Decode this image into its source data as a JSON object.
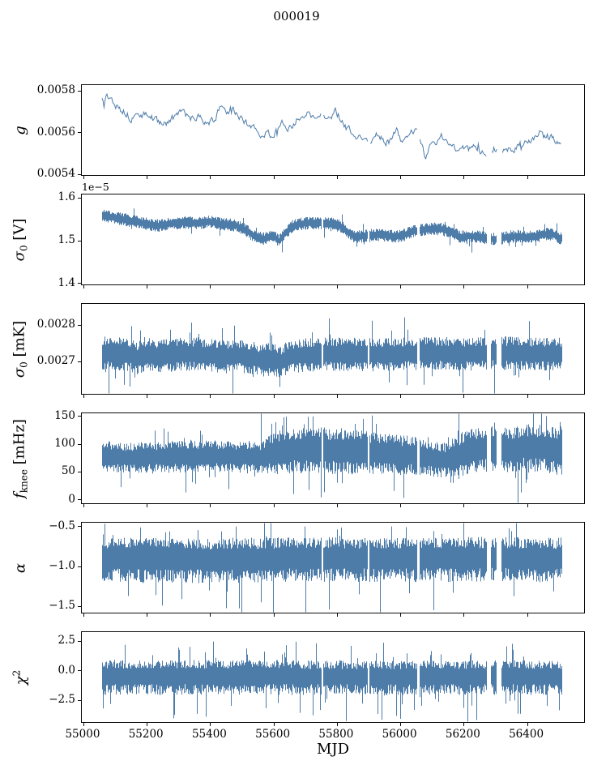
{
  "figure": {
    "title": "000019",
    "xlabel": "MJD",
    "background_color": "#ffffff",
    "line_color": "#4e7ca9",
    "axis_color": "#0a0a0a"
  },
  "chart_data": {
    "type": "line",
    "title": "000019",
    "xlabel": "MJD",
    "x_range": [
      55059,
      56508
    ],
    "xlim": [
      54995,
      56580
    ],
    "xticks": [
      {
        "v": 55000,
        "label": "55000"
      },
      {
        "v": 55200,
        "label": "55200"
      },
      {
        "v": 55400,
        "label": "55400"
      },
      {
        "v": 55600,
        "label": "55600"
      },
      {
        "v": 55800,
        "label": "55800"
      },
      {
        "v": 56000,
        "label": "56000"
      },
      {
        "v": 56200,
        "label": "56200"
      },
      {
        "v": 56400,
        "label": "56400"
      }
    ],
    "gaps": [
      [
        55752,
        55757
      ],
      [
        55897,
        55903
      ],
      [
        56053,
        56062
      ],
      [
        56272,
        56287
      ],
      [
        56305,
        56320
      ]
    ],
    "legend": "none",
    "grid": false,
    "panels": [
      {
        "name": "g",
        "label": {
          "base": "g"
        },
        "style": "line",
        "ylim": [
          0.005393,
          0.005825
        ],
        "yticks": [
          {
            "v": 0.0054,
            "label": "0.0054"
          },
          {
            "v": 0.0056,
            "label": "0.0056"
          },
          {
            "v": 0.0058,
            "label": "0.0058"
          }
        ],
        "offset": "",
        "trend": [
          [
            55060,
            0.00576
          ],
          [
            55075,
            0.005772
          ],
          [
            55090,
            0.005755
          ],
          [
            55110,
            0.005715
          ],
          [
            55130,
            0.005695
          ],
          [
            55150,
            0.005665
          ],
          [
            55175,
            0.005685
          ],
          [
            55200,
            0.005678
          ],
          [
            55222,
            0.005662
          ],
          [
            55240,
            0.005648
          ],
          [
            55256,
            0.005632
          ],
          [
            55270,
            0.005658
          ],
          [
            55290,
            0.005668
          ],
          [
            55308,
            0.005708
          ],
          [
            55325,
            0.005678
          ],
          [
            55345,
            0.005658
          ],
          [
            55365,
            0.005668
          ],
          [
            55385,
            0.005658
          ],
          [
            55405,
            0.005648
          ],
          [
            55420,
            0.005678
          ],
          [
            55435,
            0.005718
          ],
          [
            55450,
            0.005688
          ],
          [
            55465,
            0.005708
          ],
          [
            55480,
            0.005688
          ],
          [
            55500,
            0.005668
          ],
          [
            55520,
            0.005638
          ],
          [
            55540,
            0.005608
          ],
          [
            55555,
            0.005588
          ],
          [
            55570,
            0.005578
          ],
          [
            55585,
            0.005598
          ],
          [
            55600,
            0.005568
          ],
          [
            55615,
            0.005618
          ],
          [
            55630,
            0.005648
          ],
          [
            55645,
            0.005598
          ],
          [
            55660,
            0.005628
          ],
          [
            55675,
            0.005658
          ],
          [
            55690,
            0.005688
          ],
          [
            55705,
            0.005698
          ],
          [
            55720,
            0.005678
          ],
          [
            55735,
            0.005668
          ],
          [
            55750,
            0.005658
          ],
          [
            55765,
            0.005678
          ],
          [
            55780,
            0.005688
          ],
          [
            55795,
            0.005698
          ],
          [
            55810,
            0.005668
          ],
          [
            55825,
            0.005628
          ],
          [
            55840,
            0.005608
          ],
          [
            55855,
            0.005558
          ],
          [
            55870,
            0.005568
          ],
          [
            55885,
            0.005578
          ],
          [
            55900,
            0.005548
          ],
          [
            55915,
            0.005568
          ],
          [
            55930,
            0.005598
          ],
          [
            55945,
            0.005558
          ],
          [
            55960,
            0.005548
          ],
          [
            55975,
            0.005568
          ],
          [
            55990,
            0.005608
          ],
          [
            56005,
            0.005558
          ],
          [
            56020,
            0.005568
          ],
          [
            56035,
            0.005608
          ],
          [
            56050,
            0.005598
          ],
          [
            56065,
            0.005558
          ],
          [
            56080,
            0.005478
          ],
          [
            56095,
            0.005528
          ],
          [
            56110,
            0.005548
          ],
          [
            56125,
            0.005568
          ],
          [
            56140,
            0.005578
          ],
          [
            56155,
            0.005538
          ],
          [
            56170,
            0.005528
          ],
          [
            56185,
            0.005518
          ],
          [
            56200,
            0.005528
          ],
          [
            56215,
            0.005518
          ],
          [
            56230,
            0.005528
          ],
          [
            56245,
            0.005518
          ],
          [
            56260,
            0.005508
          ],
          [
            56275,
            0.005488
          ],
          [
            56290,
            0.005508
          ],
          [
            56305,
            0.005528
          ],
          [
            56320,
            0.005518
          ],
          [
            56335,
            0.005528
          ],
          [
            56350,
            0.005518
          ],
          [
            56365,
            0.005528
          ],
          [
            56380,
            0.005538
          ],
          [
            56395,
            0.005548
          ],
          [
            56410,
            0.005558
          ],
          [
            56425,
            0.005578
          ],
          [
            56440,
            0.005598
          ],
          [
            56455,
            0.005588
          ],
          [
            56470,
            0.005578
          ],
          [
            56485,
            0.005558
          ],
          [
            56508,
            0.005538
          ]
        ],
        "noise": {
          "jitter": 1.6e-05,
          "spike_p": 0.02,
          "spike_amp": 3e-05
        },
        "extra_spikes": []
      },
      {
        "name": "sigma0-V",
        "label": {
          "base": "σ",
          "sub": "0",
          "suffix": " [V]"
        },
        "style": "band",
        "ylim": [
          1.396,
          1.606
        ],
        "yticks": [
          {
            "v": 1.4,
            "label": "1.4"
          },
          {
            "v": 1.5,
            "label": "1.5"
          },
          {
            "v": 1.6,
            "label": "1.6"
          }
        ],
        "offset": "1e−5",
        "trend": [
          [
            55060,
            1.558
          ],
          [
            55090,
            1.553
          ],
          [
            55120,
            1.549
          ],
          [
            55160,
            1.543
          ],
          [
            55200,
            1.537
          ],
          [
            55240,
            1.533
          ],
          [
            55280,
            1.539
          ],
          [
            55320,
            1.541
          ],
          [
            55360,
            1.539
          ],
          [
            55400,
            1.542
          ],
          [
            55440,
            1.537
          ],
          [
            55480,
            1.534
          ],
          [
            55510,
            1.524
          ],
          [
            55540,
            1.508
          ],
          [
            55570,
            1.503
          ],
          [
            55600,
            1.509
          ],
          [
            55618,
            1.497
          ],
          [
            55635,
            1.515
          ],
          [
            55660,
            1.532
          ],
          [
            55690,
            1.538
          ],
          [
            55720,
            1.54
          ],
          [
            55750,
            1.539
          ],
          [
            55780,
            1.538
          ],
          [
            55810,
            1.533
          ],
          [
            55835,
            1.518
          ],
          [
            55860,
            1.506
          ],
          [
            55890,
            1.51
          ],
          [
            55920,
            1.512
          ],
          [
            55950,
            1.513
          ],
          [
            55980,
            1.507
          ],
          [
            56010,
            1.511
          ],
          [
            56040,
            1.52
          ],
          [
            56070,
            1.524
          ],
          [
            56100,
            1.526
          ],
          [
            56130,
            1.525
          ],
          [
            56160,
            1.518
          ],
          [
            56190,
            1.507
          ],
          [
            56220,
            1.509
          ],
          [
            56250,
            1.507
          ],
          [
            56280,
            1.503
          ],
          [
            56310,
            1.501
          ],
          [
            56340,
            1.507
          ],
          [
            56370,
            1.509
          ],
          [
            56400,
            1.506
          ],
          [
            56430,
            1.508
          ],
          [
            56460,
            1.514
          ],
          [
            56485,
            1.512
          ],
          [
            56508,
            1.503
          ]
        ],
        "noise": {
          "up": 0.013,
          "down": 0.013,
          "spike_p": 0.03,
          "spike_up": 0.5,
          "spike_down": 0.7
        },
        "extra_spikes": [
          [
            55626,
            1.471
          ]
        ]
      },
      {
        "name": "sigma0-mK",
        "label": {
          "base": "σ",
          "sub": "0",
          "suffix": " [mK]"
        },
        "style": "band",
        "ylim": [
          0.00261,
          0.002856
        ],
        "yticks": [
          {
            "v": 0.0027,
            "label": "0.0027"
          },
          {
            "v": 0.0028,
            "label": "0.0028"
          }
        ],
        "offset": "",
        "trend": [
          [
            55060,
            0.002721
          ],
          [
            55140,
            0.002718
          ],
          [
            55170,
            0.002708
          ],
          [
            55200,
            0.002718
          ],
          [
            55255,
            0.002712
          ],
          [
            55300,
            0.00272
          ],
          [
            55380,
            0.002718
          ],
          [
            55440,
            0.00271
          ],
          [
            55480,
            0.002718
          ],
          [
            55530,
            0.002708
          ],
          [
            55570,
            0.002702
          ],
          [
            55600,
            0.002706
          ],
          [
            55620,
            0.002695
          ],
          [
            55650,
            0.002712
          ],
          [
            55700,
            0.002716
          ],
          [
            55800,
            0.002719
          ],
          [
            55900,
            0.002717
          ],
          [
            56000,
            0.002719
          ],
          [
            56100,
            0.002721
          ],
          [
            56200,
            0.002719
          ],
          [
            56300,
            0.002722
          ],
          [
            56400,
            0.002719
          ],
          [
            56508,
            0.002719
          ]
        ],
        "noise": {
          "up": 4e-05,
          "down": 4e-05,
          "spike_p": 0.04,
          "spike_up": 0.5,
          "spike_down": 0.7
        },
        "extra_spikes": [
          [
            55618,
            0.002629
          ],
          [
            55162,
            0.002655
          ]
        ]
      },
      {
        "name": "fknee",
        "label": {
          "base": "f",
          "sub": "knee",
          "suffix": " [mHz]"
        },
        "style": "band",
        "ylim": [
          -8,
          154
        ],
        "yticks": [
          {
            "v": 0,
            "label": "0"
          },
          {
            "v": 50,
            "label": "50"
          },
          {
            "v": 100,
            "label": "100"
          },
          {
            "v": 150,
            "label": "150"
          }
        ],
        "offset": "",
        "trend": [
          [
            55060,
            78
          ],
          [
            55150,
            74
          ],
          [
            55250,
            76
          ],
          [
            55350,
            77
          ],
          [
            55450,
            78
          ],
          [
            55550,
            74
          ],
          [
            55600,
            84
          ],
          [
            55650,
            88
          ],
          [
            55700,
            90
          ],
          [
            55750,
            88
          ],
          [
            55800,
            88
          ],
          [
            55850,
            86
          ],
          [
            55900,
            84
          ],
          [
            55950,
            82
          ],
          [
            56000,
            80
          ],
          [
            56050,
            78
          ],
          [
            56100,
            74
          ],
          [
            56150,
            70
          ],
          [
            56200,
            84
          ],
          [
            56250,
            90
          ],
          [
            56300,
            92
          ],
          [
            56350,
            90
          ],
          [
            56400,
            94
          ],
          [
            56450,
            92
          ],
          [
            56508,
            86
          ]
        ],
        "noise": {
          "up": 30,
          "down": 32,
          "spike_p": 0.06,
          "spike_up": 0.9,
          "spike_down": 0.5,
          "amp": [
            [
              55060,
              0.8
            ],
            [
              55560,
              0.8
            ],
            [
              55610,
              1.1
            ],
            [
              55700,
              1.2
            ],
            [
              55850,
              1.15
            ],
            [
              55950,
              1.05
            ],
            [
              56100,
              0.95
            ],
            [
              56160,
              0.85
            ],
            [
              56200,
              1.15
            ],
            [
              56300,
              1.2
            ],
            [
              56508,
              1.2
            ]
          ]
        },
        "extra_spikes": [
          [
            55640,
            148
          ],
          [
            55910,
            150
          ],
          [
            56280,
            150
          ],
          [
            56460,
            149
          ]
        ]
      },
      {
        "name": "alpha",
        "label": {
          "base": "α"
        },
        "style": "band",
        "ylim": [
          -1.59,
          -0.46
        ],
        "yticks": [
          {
            "v": -1.5,
            "label": "−1.5"
          },
          {
            "v": -1.0,
            "label": "−1.0"
          },
          {
            "v": -0.5,
            "label": "−0.5"
          }
        ],
        "offset": "",
        "trend": [
          [
            55060,
            -0.9
          ],
          [
            55400,
            -0.91
          ],
          [
            55700,
            -0.89
          ],
          [
            56000,
            -0.9
          ],
          [
            56300,
            -0.89
          ],
          [
            56508,
            -0.9
          ]
        ],
        "noise": {
          "up": 0.22,
          "down": 0.27,
          "spike_p": 0.05,
          "spike_up": 0.45,
          "spike_down": 0.9
        },
        "extra_spikes": [
          [
            55140,
            -1.38
          ],
          [
            55310,
            -1.42
          ],
          [
            55560,
            -1.46
          ],
          [
            55870,
            -1.36
          ],
          [
            56105,
            -1.56
          ]
        ]
      },
      {
        "name": "chi2",
        "label": {
          "base": "χ",
          "sup": "2"
        },
        "style": "band",
        "ylim": [
          -4.4,
          3.2
        ],
        "yticks": [
          {
            "v": -2.5,
            "label": "−2.5"
          },
          {
            "v": 0.0,
            "label": "0.0"
          },
          {
            "v": 2.5,
            "label": "2.5"
          }
        ],
        "offset": "",
        "trend": [
          [
            55060,
            -0.45
          ],
          [
            55500,
            -0.42
          ],
          [
            55900,
            -0.5
          ],
          [
            56200,
            -0.45
          ],
          [
            56508,
            -0.45
          ]
        ],
        "noise": {
          "up": 1.1,
          "down": 1.45,
          "spike_p": 0.07,
          "spike_up": 0.55,
          "spike_down": 0.6
        },
        "extra_spikes": [
          [
            55062,
            -3.25
          ],
          [
            55410,
            2.4
          ],
          [
            55640,
            2.1
          ],
          [
            56335,
            2.0
          ],
          [
            56370,
            -3.7
          ],
          [
            56500,
            -3.4
          ]
        ]
      }
    ]
  }
}
